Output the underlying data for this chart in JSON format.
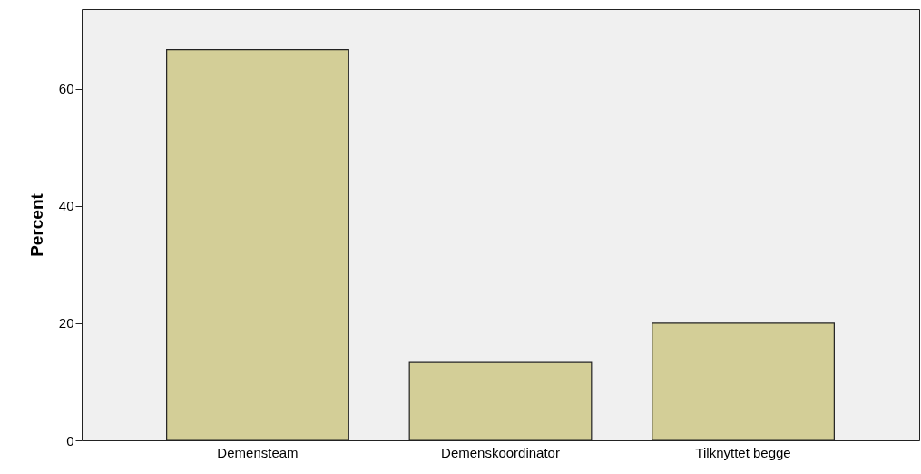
{
  "chart_data": {
    "type": "bar",
    "ylabel": "Percent",
    "categories": [
      "Demensteam",
      "Demenskoordinator",
      "Tilknyttet begge"
    ],
    "values": [
      66.7,
      13.3,
      20.0
    ],
    "color": "#d3ce97",
    "ylim": [
      0,
      73.6
    ],
    "yticks": [
      0,
      20,
      40,
      60
    ],
    "grid": false
  }
}
